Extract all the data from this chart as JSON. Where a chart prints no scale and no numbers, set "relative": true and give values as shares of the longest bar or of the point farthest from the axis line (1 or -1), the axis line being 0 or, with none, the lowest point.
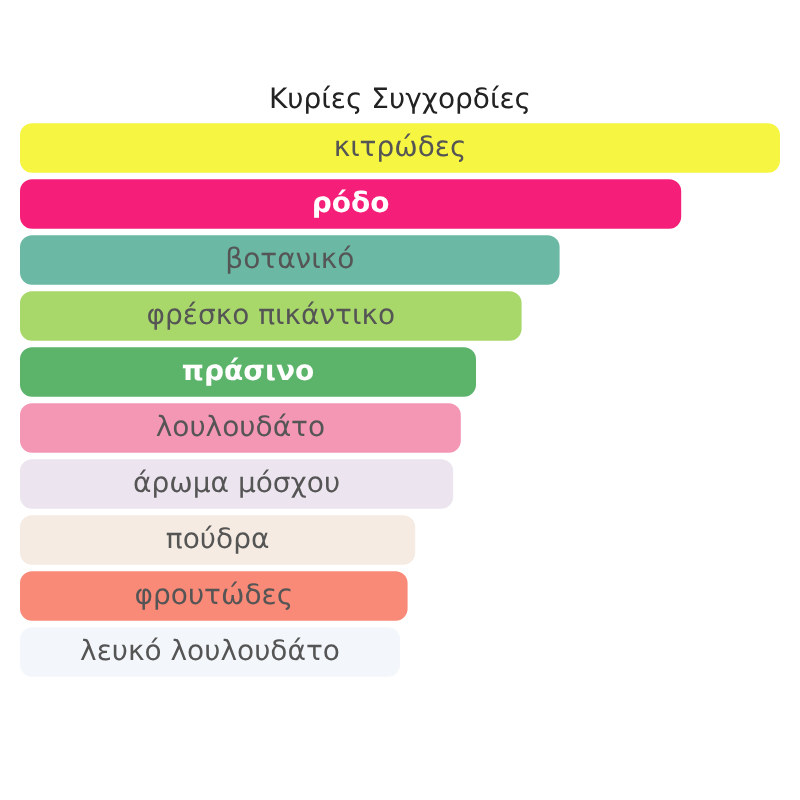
{
  "chart_data": {
    "type": "bar",
    "title": "Κυρίες Συγχορδίες",
    "orientation": "horizontal",
    "relative": true,
    "categories": [
      "κιτρώδες",
      "ρόδο",
      "βοτανικό",
      "φρέσκο πικάντικο",
      "πράσινο",
      "λουλουδάτο",
      "άρωμα μόσχου",
      "πούδρα",
      "φρουτώδες",
      "λευκό λουλουδάτο"
    ],
    "values": [
      1,
      0.87,
      0.71,
      0.66,
      0.6,
      0.58,
      0.57,
      0.52,
      0.51,
      0.5
    ],
    "colors": [
      "#f5f542",
      "#f51f79",
      "#6bb8a4",
      "#a8d86a",
      "#5cb46b",
      "#f497b5",
      "#ece4ef",
      "#f5ebe2",
      "#fa8a78",
      "#f3f6fb"
    ]
  }
}
